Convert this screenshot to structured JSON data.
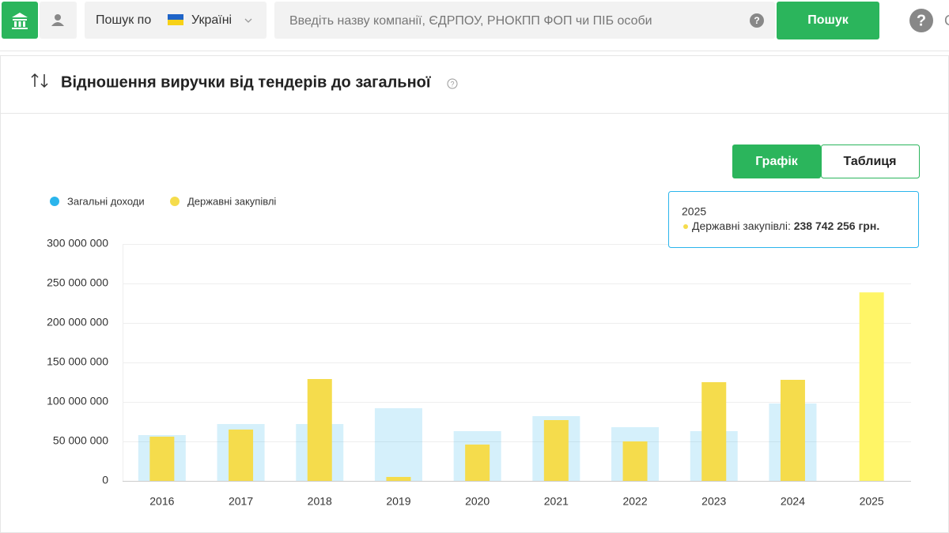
{
  "search": {
    "scope_label": "Пошук по",
    "country": "Україні",
    "placeholder": "Введіть назву компанії, ЄДРПОУ, РНОКПП ФОП чи ПІБ особи",
    "button": "Пошук"
  },
  "section": {
    "title": "Відношення виручки від тендерів до загальної"
  },
  "view_toggle": [
    "Графік",
    "Таблиця"
  ],
  "chart_data": {
    "type": "bar",
    "categories": [
      "2016",
      "2017",
      "2018",
      "2019",
      "2020",
      "2021",
      "2022",
      "2023",
      "2024",
      "2025"
    ],
    "series": [
      {
        "name": "Загальні доходи",
        "color": "#2bb5ec",
        "opacity": 0.2,
        "values": [
          58000000,
          72000000,
          72000000,
          92000000,
          63000000,
          82000000,
          68000000,
          63000000,
          98000000,
          null
        ]
      },
      {
        "name": "Державні закупівлі",
        "color": "#f5dc4c",
        "opacity": 1,
        "values": [
          56000000,
          65000000,
          129000000,
          5000000,
          46000000,
          77000000,
          50000000,
          125000000,
          128000000,
          238742256
        ]
      }
    ],
    "ylim": [
      0,
      300000000
    ],
    "yticks": [
      0,
      {
        "value": 50000000,
        "label": "50 000 000"
      },
      {
        "value": 100000000,
        "label": "100 000 000"
      },
      {
        "value": 150000000,
        "label": "150 000 000"
      },
      {
        "value": 200000000,
        "label": "200 000 000"
      },
      {
        "value": 250000000,
        "label": "250 000 000"
      },
      {
        "value": 300000000,
        "label": "300 000 000"
      }
    ],
    "grid": true,
    "highlight_color": "#fff566",
    "tooltip": {
      "title": "2025",
      "label": "Державні закупівлі:",
      "value_label": "238 742 256 грн."
    }
  }
}
